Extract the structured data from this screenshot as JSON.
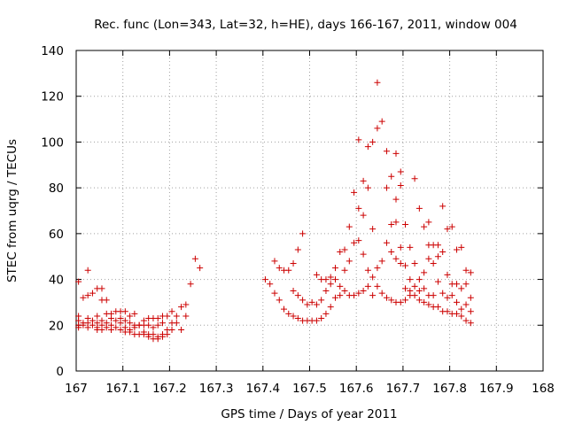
{
  "chart_data": {
    "type": "scatter",
    "title": "Rec. func (Lon=343, Lat=32, h=HE), days 166-167, 2011, window 004",
    "xlabel": "GPS time / Days of year 2011",
    "ylabel": "STEC from uqrg / TECUs",
    "xlim": [
      167,
      168
    ],
    "ylim": [
      0,
      140
    ],
    "xticks": [
      167,
      167.1,
      167.2,
      167.3,
      167.4,
      167.5,
      167.6,
      167.7,
      167.8,
      167.9,
      168
    ],
    "xtick_labels": [
      "167",
      "167.1",
      "167.2",
      "167.3",
      "167.4",
      "167.5",
      "167.6",
      "167.7",
      "167.8",
      "167.9",
      "168"
    ],
    "yticks": [
      0,
      20,
      40,
      60,
      80,
      100,
      120,
      140
    ],
    "ytick_labels": [
      "0",
      "20",
      "40",
      "60",
      "80",
      "100",
      "120",
      "140"
    ],
    "grid": true,
    "marker": "+",
    "color": "#cc0000",
    "points": [
      [
        167.005,
        39
      ],
      [
        167.005,
        24
      ],
      [
        167.005,
        22
      ],
      [
        167.005,
        20
      ],
      [
        167.005,
        19
      ],
      [
        167.015,
        32
      ],
      [
        167.015,
        21
      ],
      [
        167.015,
        20
      ],
      [
        167.025,
        44
      ],
      [
        167.025,
        33
      ],
      [
        167.025,
        23
      ],
      [
        167.025,
        21
      ],
      [
        167.025,
        19
      ],
      [
        167.035,
        34
      ],
      [
        167.035,
        22
      ],
      [
        167.035,
        20
      ],
      [
        167.045,
        36
      ],
      [
        167.045,
        24
      ],
      [
        167.045,
        21
      ],
      [
        167.045,
        19
      ],
      [
        167.045,
        18
      ],
      [
        167.055,
        31
      ],
      [
        167.055,
        36
      ],
      [
        167.055,
        22
      ],
      [
        167.055,
        20
      ],
      [
        167.055,
        18
      ],
      [
        167.065,
        31
      ],
      [
        167.065,
        25
      ],
      [
        167.065,
        21
      ],
      [
        167.065,
        19
      ],
      [
        167.075,
        25
      ],
      [
        167.075,
        23
      ],
      [
        167.075,
        20
      ],
      [
        167.075,
        18
      ],
      [
        167.085,
        26
      ],
      [
        167.085,
        22
      ],
      [
        167.085,
        19
      ],
      [
        167.095,
        26
      ],
      [
        167.095,
        23
      ],
      [
        167.095,
        21
      ],
      [
        167.095,
        18
      ],
      [
        167.105,
        26
      ],
      [
        167.105,
        22
      ],
      [
        167.105,
        19
      ],
      [
        167.105,
        17
      ],
      [
        167.115,
        24
      ],
      [
        167.115,
        21
      ],
      [
        167.115,
        18
      ],
      [
        167.115,
        17
      ],
      [
        167.125,
        25
      ],
      [
        167.125,
        20
      ],
      [
        167.125,
        19
      ],
      [
        167.125,
        16
      ],
      [
        167.135,
        20
      ],
      [
        167.135,
        20
      ],
      [
        167.135,
        16
      ],
      [
        167.145,
        22
      ],
      [
        167.145,
        20
      ],
      [
        167.145,
        17
      ],
      [
        167.145,
        16
      ],
      [
        167.155,
        23
      ],
      [
        167.155,
        20
      ],
      [
        167.155,
        16
      ],
      [
        167.155,
        15
      ],
      [
        167.165,
        23
      ],
      [
        167.165,
        19
      ],
      [
        167.165,
        16
      ],
      [
        167.165,
        14
      ],
      [
        167.175,
        23
      ],
      [
        167.175,
        20
      ],
      [
        167.175,
        15
      ],
      [
        167.175,
        14
      ],
      [
        167.185,
        24
      ],
      [
        167.185,
        21
      ],
      [
        167.185,
        16
      ],
      [
        167.185,
        15
      ],
      [
        167.195,
        24
      ],
      [
        167.195,
        18
      ],
      [
        167.195,
        16
      ],
      [
        167.205,
        26
      ],
      [
        167.205,
        21
      ],
      [
        167.205,
        18
      ],
      [
        167.215,
        24
      ],
      [
        167.215,
        21
      ],
      [
        167.225,
        28
      ],
      [
        167.225,
        18
      ],
      [
        167.235,
        29
      ],
      [
        167.235,
        24
      ],
      [
        167.245,
        38
      ],
      [
        167.255,
        49
      ],
      [
        167.265,
        45
      ],
      [
        167.405,
        40
      ],
      [
        167.415,
        38
      ],
      [
        167.425,
        34
      ],
      [
        167.425,
        48
      ],
      [
        167.435,
        45
      ],
      [
        167.435,
        31
      ],
      [
        167.445,
        44
      ],
      [
        167.445,
        27
      ],
      [
        167.455,
        44
      ],
      [
        167.455,
        25
      ],
      [
        167.465,
        47
      ],
      [
        167.465,
        35
      ],
      [
        167.465,
        24
      ],
      [
        167.475,
        53
      ],
      [
        167.475,
        33
      ],
      [
        167.475,
        23
      ],
      [
        167.485,
        60
      ],
      [
        167.485,
        31
      ],
      [
        167.485,
        22
      ],
      [
        167.495,
        29
      ],
      [
        167.495,
        22
      ],
      [
        167.505,
        30
      ],
      [
        167.505,
        22
      ],
      [
        167.515,
        42
      ],
      [
        167.515,
        29
      ],
      [
        167.515,
        22
      ],
      [
        167.525,
        40
      ],
      [
        167.525,
        31
      ],
      [
        167.525,
        23
      ],
      [
        167.535,
        40
      ],
      [
        167.535,
        35
      ],
      [
        167.535,
        25
      ],
      [
        167.545,
        41
      ],
      [
        167.545,
        38
      ],
      [
        167.545,
        28
      ],
      [
        167.555,
        45
      ],
      [
        167.555,
        40
      ],
      [
        167.555,
        32
      ],
      [
        167.565,
        52
      ],
      [
        167.565,
        37
      ],
      [
        167.565,
        33
      ],
      [
        167.575,
        53
      ],
      [
        167.575,
        44
      ],
      [
        167.575,
        35
      ],
      [
        167.585,
        63
      ],
      [
        167.585,
        48
      ],
      [
        167.585,
        33
      ],
      [
        167.595,
        78
      ],
      [
        167.595,
        56
      ],
      [
        167.595,
        33
      ],
      [
        167.605,
        101
      ],
      [
        167.605,
        71
      ],
      [
        167.605,
        57
      ],
      [
        167.605,
        34
      ],
      [
        167.615,
        83
      ],
      [
        167.615,
        68
      ],
      [
        167.615,
        51
      ],
      [
        167.615,
        35
      ],
      [
        167.625,
        98
      ],
      [
        167.625,
        80
      ],
      [
        167.625,
        44
      ],
      [
        167.625,
        37
      ],
      [
        167.635,
        100
      ],
      [
        167.635,
        62
      ],
      [
        167.635,
        41
      ],
      [
        167.635,
        33
      ],
      [
        167.645,
        126
      ],
      [
        167.645,
        106
      ],
      [
        167.645,
        45
      ],
      [
        167.645,
        37
      ],
      [
        167.655,
        109
      ],
      [
        167.655,
        48
      ],
      [
        167.655,
        34
      ],
      [
        167.665,
        96
      ],
      [
        167.665,
        80
      ],
      [
        167.665,
        56
      ],
      [
        167.665,
        32
      ],
      [
        167.675,
        85
      ],
      [
        167.675,
        64
      ],
      [
        167.675,
        52
      ],
      [
        167.675,
        31
      ],
      [
        167.685,
        95
      ],
      [
        167.685,
        75
      ],
      [
        167.685,
        65
      ],
      [
        167.685,
        49
      ],
      [
        167.685,
        30
      ],
      [
        167.695,
        87
      ],
      [
        167.695,
        81
      ],
      [
        167.695,
        54
      ],
      [
        167.695,
        47
      ],
      [
        167.695,
        30
      ],
      [
        167.705,
        64
      ],
      [
        167.705,
        46
      ],
      [
        167.705,
        36
      ],
      [
        167.705,
        31
      ],
      [
        167.715,
        54
      ],
      [
        167.715,
        40
      ],
      [
        167.715,
        35
      ],
      [
        167.715,
        33
      ],
      [
        167.725,
        84
      ],
      [
        167.725,
        47
      ],
      [
        167.725,
        37
      ],
      [
        167.725,
        33
      ],
      [
        167.735,
        71
      ],
      [
        167.735,
        40
      ],
      [
        167.735,
        35
      ],
      [
        167.735,
        31
      ],
      [
        167.745,
        63
      ],
      [
        167.745,
        43
      ],
      [
        167.745,
        36
      ],
      [
        167.745,
        30
      ],
      [
        167.755,
        65
      ],
      [
        167.755,
        55
      ],
      [
        167.755,
        49
      ],
      [
        167.755,
        33
      ],
      [
        167.755,
        29
      ],
      [
        167.765,
        55
      ],
      [
        167.765,
        47
      ],
      [
        167.765,
        33
      ],
      [
        167.765,
        28
      ],
      [
        167.775,
        55
      ],
      [
        167.775,
        50
      ],
      [
        167.775,
        39
      ],
      [
        167.775,
        28
      ],
      [
        167.785,
        72
      ],
      [
        167.785,
        52
      ],
      [
        167.785,
        34
      ],
      [
        167.785,
        26
      ],
      [
        167.795,
        62
      ],
      [
        167.795,
        42
      ],
      [
        167.795,
        32
      ],
      [
        167.795,
        26
      ],
      [
        167.805,
        63
      ],
      [
        167.805,
        38
      ],
      [
        167.805,
        33
      ],
      [
        167.805,
        25
      ],
      [
        167.815,
        53
      ],
      [
        167.815,
        38
      ],
      [
        167.815,
        30
      ],
      [
        167.815,
        25
      ],
      [
        167.825,
        54
      ],
      [
        167.825,
        36
      ],
      [
        167.825,
        27
      ],
      [
        167.825,
        24
      ],
      [
        167.835,
        44
      ],
      [
        167.835,
        38
      ],
      [
        167.835,
        29
      ],
      [
        167.835,
        22
      ],
      [
        167.845,
        43
      ],
      [
        167.845,
        32
      ],
      [
        167.845,
        26
      ],
      [
        167.845,
        21
      ]
    ]
  }
}
